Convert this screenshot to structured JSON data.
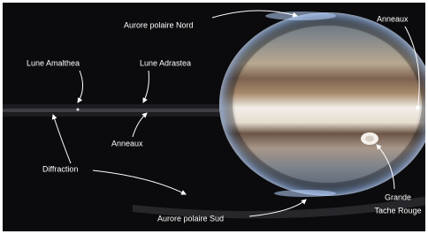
{
  "labels": {
    "aurora_north": "Aurore polaire Nord",
    "rings_right": "Anneaux",
    "amalthea": "Lune Amalthea",
    "adrastea": "Lune Adrastea",
    "rings_left": "Anneaux",
    "diffraction": "Diffraction",
    "aurora_south": "Aurore polaire Sud",
    "red_spot": [
      "Grande",
      "Tache Rouge"
    ]
  }
}
